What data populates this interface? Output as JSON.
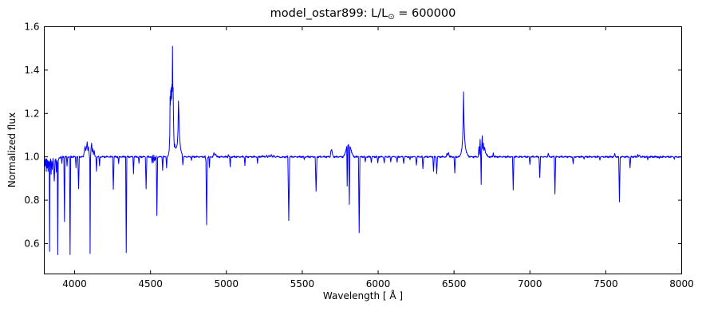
{
  "figure": {
    "title": {
      "prefix": "model_ostar899: L/L",
      "sub": "⊙",
      "suffix": " = 600000"
    },
    "xlabel": "Wavelength [ Å ]",
    "ylabel": "Normalized flux"
  },
  "chart_data": {
    "type": "line",
    "title": "model_ostar899: L/L⊙ = 600000",
    "xlabel": "Wavelength [ Å ]",
    "ylabel": "Normalized flux",
    "legend": "none",
    "grid": false,
    "line_color": "#0000ff",
    "frame_color": "#000000",
    "background_color": "#ffffff",
    "xlim": [
      3800,
      8000
    ],
    "ylim": [
      0.46,
      1.6
    ],
    "xticks": [
      "4000",
      "4500",
      "5000",
      "5500",
      "6000",
      "6500",
      "7000",
      "7500",
      "8000"
    ],
    "yticks": [
      "0.6",
      "0.8",
      "1.0",
      "1.2",
      "1.4",
      "1.6"
    ],
    "continuum": 1.0,
    "noise_amp": 0.0022,
    "points": [
      [
        3800,
        0.975
      ],
      [
        3803,
        0.99
      ],
      [
        3806,
        0.955
      ],
      [
        3810,
        0.99
      ],
      [
        3813,
        0.93
      ],
      [
        3816,
        0.99
      ],
      [
        3819,
        0.95
      ],
      [
        3822,
        0.985
      ],
      [
        3825,
        0.935
      ],
      [
        3828,
        0.98
      ],
      [
        3831,
        0.96
      ],
      [
        3833,
        0.975
      ],
      [
        3835,
        0.56
      ],
      [
        3838,
        0.975
      ],
      [
        3842,
        0.99
      ],
      [
        3845,
        0.92
      ],
      [
        3849,
        0.985
      ],
      [
        3853,
        0.94
      ],
      [
        3858,
        0.99
      ],
      [
        3862,
        0.945
      ],
      [
        3866,
        0.89
      ],
      [
        3871,
        0.985
      ],
      [
        3876,
        0.99
      ],
      [
        3879,
        0.93
      ],
      [
        3883,
        0.985
      ],
      [
        3886,
        0.97
      ],
      [
        3889,
        0.55
      ],
      [
        3892,
        0.98
      ],
      [
        3898,
        0.995
      ],
      [
        3912,
        1.0
      ],
      [
        3916,
        0.965
      ],
      [
        3920,
        1.0
      ],
      [
        3929,
        1.0
      ],
      [
        3933,
        0.7
      ],
      [
        3937,
        1.0
      ],
      [
        3946,
        1.0
      ],
      [
        3950,
        0.955
      ],
      [
        3954,
        1.0
      ],
      [
        3966,
        1.0
      ],
      [
        3970,
        0.55
      ],
      [
        3974,
        1.0
      ],
      [
        4005,
        1.0
      ],
      [
        4009,
        0.95
      ],
      [
        4013,
        1.0
      ],
      [
        4021,
        1.0
      ],
      [
        4026,
        0.85
      ],
      [
        4031,
        1.0
      ],
      [
        4058,
        1.0
      ],
      [
        4064,
        1.03
      ],
      [
        4069,
        1.05
      ],
      [
        4073,
        1.03
      ],
      [
        4078,
        1.04
      ],
      [
        4083,
        1.065
      ],
      [
        4087,
        1.03
      ],
      [
        4091,
        1.05
      ],
      [
        4095,
        1.02
      ],
      [
        4098,
        1.0
      ],
      [
        4100,
        0.98
      ],
      [
        4102,
        0.555
      ],
      [
        4105,
        0.995
      ],
      [
        4108,
        1.04
      ],
      [
        4112,
        1.06
      ],
      [
        4116,
        1.025
      ],
      [
        4120,
        1.04
      ],
      [
        4124,
        1.01
      ],
      [
        4129,
        1.025
      ],
      [
        4134,
        1.0
      ],
      [
        4140,
        1.0
      ],
      [
        4144,
        0.935
      ],
      [
        4148,
        1.0
      ],
      [
        4160,
        1.0
      ],
      [
        4164,
        0.955
      ],
      [
        4168,
        1.0
      ],
      [
        4250,
        1.0
      ],
      [
        4255,
        0.85
      ],
      [
        4260,
        1.0
      ],
      [
        4286,
        1.0
      ],
      [
        4290,
        0.965
      ],
      [
        4294,
        1.0
      ],
      [
        4336,
        1.0
      ],
      [
        4340,
        0.56
      ],
      [
        4344,
        1.0
      ],
      [
        4384,
        1.0
      ],
      [
        4388,
        0.92
      ],
      [
        4392,
        1.0
      ],
      [
        4420,
        1.0
      ],
      [
        4424,
        0.97
      ],
      [
        4428,
        1.0
      ],
      [
        4466,
        1.0
      ],
      [
        4471,
        0.855
      ],
      [
        4476,
        1.0
      ],
      [
        4506,
        1.0
      ],
      [
        4510,
        0.97
      ],
      [
        4514,
        1.005
      ],
      [
        4518,
        0.975
      ],
      [
        4522,
        1.01
      ],
      [
        4526,
        0.98
      ],
      [
        4530,
        1.0
      ],
      [
        4534,
        0.985
      ],
      [
        4538,
        1.0
      ],
      [
        4542,
        0.73
      ],
      [
        4547,
        1.0
      ],
      [
        4576,
        1.0
      ],
      [
        4580,
        0.94
      ],
      [
        4584,
        1.0
      ],
      [
        4602,
        1.0
      ],
      [
        4606,
        0.95
      ],
      [
        4610,
        1.0
      ],
      [
        4618,
        1.005
      ],
      [
        4623,
        1.03
      ],
      [
        4627,
        1.1
      ],
      [
        4629,
        1.28
      ],
      [
        4631,
        1.24
      ],
      [
        4633,
        1.31
      ],
      [
        4635,
        1.26
      ],
      [
        4637,
        1.32
      ],
      [
        4639,
        1.27
      ],
      [
        4641,
        1.33
      ],
      [
        4643,
        1.3
      ],
      [
        4645,
        1.51
      ],
      [
        4647,
        1.31
      ],
      [
        4649,
        1.32
      ],
      [
        4651,
        1.2
      ],
      [
        4654,
        1.09
      ],
      [
        4657,
        1.05
      ],
      [
        4660,
        1.06
      ],
      [
        4663,
        1.045
      ],
      [
        4667,
        1.04
      ],
      [
        4672,
        1.045
      ],
      [
        4677,
        1.06
      ],
      [
        4681,
        1.12
      ],
      [
        4684,
        1.26
      ],
      [
        4687,
        1.2
      ],
      [
        4690,
        1.12
      ],
      [
        4694,
        1.07
      ],
      [
        4698,
        1.04
      ],
      [
        4703,
        1.025
      ],
      [
        4708,
        1.015
      ],
      [
        4713,
        0.965
      ],
      [
        4718,
        1.0
      ],
      [
        4766,
        1.0
      ],
      [
        4770,
        0.985
      ],
      [
        4774,
        1.0
      ],
      [
        4860,
        1.0
      ],
      [
        4865,
        0.98
      ],
      [
        4870,
        0.69
      ],
      [
        4875,
        0.995
      ],
      [
        4884,
        1.0
      ],
      [
        4888,
        0.95
      ],
      [
        4892,
        1.0
      ],
      [
        4912,
        1.0
      ],
      [
        4918,
        1.015
      ],
      [
        4924,
        1.005
      ],
      [
        4930,
        1.012
      ],
      [
        4936,
        1.0
      ],
      [
        5008,
        1.0
      ],
      [
        5013,
        1.012
      ],
      [
        5018,
        1.0
      ],
      [
        5021,
        1.0
      ],
      [
        5025,
        0.955
      ],
      [
        5029,
        1.0
      ],
      [
        5118,
        1.0
      ],
      [
        5122,
        0.96
      ],
      [
        5126,
        1.0
      ],
      [
        5201,
        1.0
      ],
      [
        5205,
        0.97
      ],
      [
        5209,
        1.0
      ],
      [
        5252,
        1.002
      ],
      [
        5258,
        0.996
      ],
      [
        5265,
        1.006
      ],
      [
        5272,
        0.997
      ],
      [
        5280,
        1.008
      ],
      [
        5288,
        0.998
      ],
      [
        5296,
        1.01
      ],
      [
        5304,
        1.0
      ],
      [
        5312,
        1.006
      ],
      [
        5322,
        0.996
      ],
      [
        5334,
        1.004
      ],
      [
        5346,
        0.998
      ],
      [
        5405,
        1.0
      ],
      [
        5411,
        0.71
      ],
      [
        5417,
        1.0
      ],
      [
        5508,
        1.0
      ],
      [
        5513,
        0.985
      ],
      [
        5518,
        1.0
      ],
      [
        5585,
        1.0
      ],
      [
        5591,
        0.84
      ],
      [
        5597,
        1.0
      ],
      [
        5684,
        1.0
      ],
      [
        5689,
        1.028
      ],
      [
        5694,
        1.035
      ],
      [
        5700,
        1.012
      ],
      [
        5706,
        1.0
      ],
      [
        5768,
        1.0
      ],
      [
        5778,
        1.008
      ],
      [
        5787,
        1.028
      ],
      [
        5793,
        1.048
      ],
      [
        5796,
        0.865
      ],
      [
        5800,
        1.05
      ],
      [
        5805,
        1.055
      ],
      [
        5810,
        0.78
      ],
      [
        5814,
        1.05
      ],
      [
        5819,
        1.042
      ],
      [
        5826,
        1.02
      ],
      [
        5834,
        1.006
      ],
      [
        5843,
        1.0
      ],
      [
        5870,
        1.0
      ],
      [
        5875,
        0.65
      ],
      [
        5880,
        1.0
      ],
      [
        5910,
        1.0
      ],
      [
        5915,
        0.975
      ],
      [
        5920,
        1.0
      ],
      [
        5950,
        1.0
      ],
      [
        5955,
        0.975
      ],
      [
        5960,
        1.0
      ],
      [
        5993,
        1.0
      ],
      [
        5998,
        0.972
      ],
      [
        6003,
        1.0
      ],
      [
        6035,
        1.0
      ],
      [
        6040,
        0.973
      ],
      [
        6045,
        1.0
      ],
      [
        6078,
        1.0
      ],
      [
        6083,
        0.974
      ],
      [
        6088,
        1.0
      ],
      [
        6120,
        1.0
      ],
      [
        6125,
        0.976
      ],
      [
        6130,
        1.0
      ],
      [
        6163,
        1.0
      ],
      [
        6168,
        0.972
      ],
      [
        6173,
        1.0
      ],
      [
        6205,
        1.0
      ],
      [
        6210,
        0.982
      ],
      [
        6215,
        1.0
      ],
      [
        6247,
        1.0
      ],
      [
        6252,
        0.965
      ],
      [
        6257,
        1.0
      ],
      [
        6290,
        1.0
      ],
      [
        6295,
        0.945
      ],
      [
        6300,
        1.0
      ],
      [
        6360,
        1.0
      ],
      [
        6365,
        0.93
      ],
      [
        6370,
        1.0
      ],
      [
        6381,
        1.0
      ],
      [
        6386,
        0.925
      ],
      [
        6391,
        1.0
      ],
      [
        6448,
        1.0
      ],
      [
        6453,
        1.015
      ],
      [
        6458,
        1.004
      ],
      [
        6464,
        1.02
      ],
      [
        6470,
        1.0
      ],
      [
        6500,
        1.0
      ],
      [
        6505,
        0.925
      ],
      [
        6510,
        1.0
      ],
      [
        6535,
        1.0
      ],
      [
        6545,
        1.015
      ],
      [
        6552,
        1.04
      ],
      [
        6557,
        1.09
      ],
      [
        6560,
        1.16
      ],
      [
        6563,
        1.3
      ],
      [
        6566,
        1.16
      ],
      [
        6570,
        1.09
      ],
      [
        6575,
        1.045
      ],
      [
        6582,
        1.02
      ],
      [
        6592,
        1.006
      ],
      [
        6605,
        1.0
      ],
      [
        6660,
        1.0
      ],
      [
        6664,
        1.045
      ],
      [
        6668,
        1.01
      ],
      [
        6672,
        1.08
      ],
      [
        6676,
        1.0
      ],
      [
        6679,
        0.875
      ],
      [
        6682,
        1.04
      ],
      [
        6686,
        1.1
      ],
      [
        6689,
        1.035
      ],
      [
        6693,
        1.06
      ],
      [
        6697,
        1.03
      ],
      [
        6702,
        1.045
      ],
      [
        6708,
        1.02
      ],
      [
        6715,
        1.01
      ],
      [
        6724,
        1.0
      ],
      [
        6754,
        1.0
      ],
      [
        6759,
        1.02
      ],
      [
        6764,
        1.0
      ],
      [
        6885,
        1.0
      ],
      [
        6890,
        0.845
      ],
      [
        6895,
        1.0
      ],
      [
        6995,
        1.0
      ],
      [
        7000,
        0.965
      ],
      [
        7005,
        1.0
      ],
      [
        7060,
        1.0
      ],
      [
        7065,
        0.905
      ],
      [
        7070,
        1.0
      ],
      [
        7116,
        1.0
      ],
      [
        7121,
        1.015
      ],
      [
        7126,
        1.0
      ],
      [
        7160,
        1.0
      ],
      [
        7165,
        0.83
      ],
      [
        7170,
        1.0
      ],
      [
        7280,
        1.0
      ],
      [
        7285,
        0.97
      ],
      [
        7290,
        1.0
      ],
      [
        7352,
        1.0
      ],
      [
        7357,
        0.99
      ],
      [
        7362,
        1.0
      ],
      [
        7456,
        1.0
      ],
      [
        7461,
        0.985
      ],
      [
        7466,
        1.0
      ],
      [
        7554,
        1.0
      ],
      [
        7559,
        1.012
      ],
      [
        7564,
        1.0
      ],
      [
        7585,
        1.0
      ],
      [
        7590,
        0.795
      ],
      [
        7595,
        1.0
      ],
      [
        7655,
        1.0
      ],
      [
        7660,
        0.95
      ],
      [
        7665,
        1.0
      ],
      [
        7706,
        1.0
      ],
      [
        7710,
        1.012
      ],
      [
        7714,
        1.0
      ],
      [
        7722,
        1.006
      ],
      [
        7730,
        1.0
      ],
      [
        7772,
        1.0
      ],
      [
        7776,
        0.985
      ],
      [
        7780,
        1.0
      ],
      [
        7848,
        1.0
      ],
      [
        7852,
        0.99
      ],
      [
        7856,
        1.0
      ],
      [
        7948,
        1.0
      ],
      [
        7952,
        0.99
      ],
      [
        7956,
        1.0
      ],
      [
        8000,
        0.998
      ]
    ]
  }
}
